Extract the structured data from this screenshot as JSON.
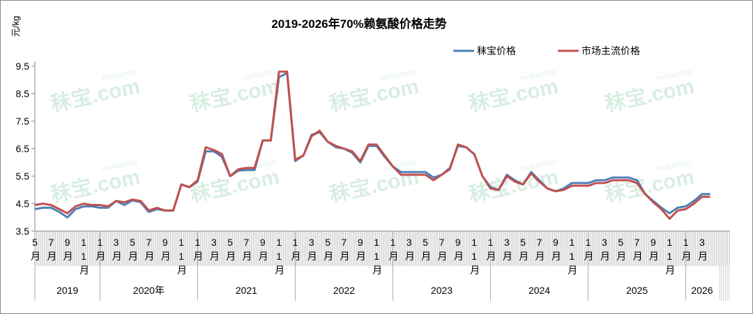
{
  "chart_data": {
    "type": "line",
    "title": "2019-2026年70%赖氨酸价格走势",
    "ylabel": "元/kg",
    "xlabel": "",
    "ylim": [
      3.5,
      9.8
    ],
    "yticks": [
      "3.5",
      "4.5",
      "5.5",
      "6.5",
      "7.5",
      "8.5",
      "9.5"
    ],
    "grid": false,
    "legend_placement": "top-right",
    "watermark": "秣宝.com mobaobuy",
    "x_start": "2019-05",
    "x_end": "2026-04",
    "x_tick_labels": [
      "5月",
      "7月",
      "9月",
      "11月",
      "1月",
      "3月",
      "5月",
      "7月",
      "9月",
      "11月",
      "1月",
      "3月",
      "5月",
      "7月",
      "9月",
      "11月",
      "1月",
      "3月",
      "5月",
      "7月",
      "9月",
      "11月",
      "1月",
      "3月",
      "5月",
      "7月",
      "9月",
      "11月",
      "1月",
      "3月",
      "5月",
      "7月",
      "9月",
      "11月",
      "1月",
      "3月",
      "5月",
      "7月",
      "9月",
      "11月",
      "1月",
      "3月"
    ],
    "year_labels": [
      "2019",
      "2020年",
      "2021",
      "2022",
      "2023",
      "2024",
      "2025",
      "2026"
    ],
    "x": [
      "2019-05",
      "2019-06",
      "2019-07",
      "2019-08",
      "2019-09",
      "2019-10",
      "2019-11",
      "2019-12",
      "2020-01",
      "2020-02",
      "2020-03",
      "2020-04",
      "2020-05",
      "2020-06",
      "2020-07",
      "2020-08",
      "2020-09",
      "2020-10",
      "2020-11",
      "2020-12",
      "2021-01",
      "2021-02",
      "2021-03",
      "2021-04",
      "2021-05",
      "2021-06",
      "2021-07",
      "2021-08",
      "2021-09",
      "2021-10",
      "2021-11",
      "2021-12",
      "2022-01",
      "2022-02",
      "2022-03",
      "2022-04",
      "2022-05",
      "2022-06",
      "2022-07",
      "2022-08",
      "2022-09",
      "2022-10",
      "2022-11",
      "2022-12",
      "2023-01",
      "2023-02",
      "2023-03",
      "2023-04",
      "2023-05",
      "2023-06",
      "2023-07",
      "2023-08",
      "2023-09",
      "2023-10",
      "2023-11",
      "2023-12",
      "2024-01",
      "2024-02",
      "2024-03",
      "2024-04",
      "2024-05",
      "2024-06",
      "2024-07",
      "2024-08",
      "2024-09",
      "2024-10",
      "2024-11",
      "2024-12",
      "2025-01",
      "2025-02",
      "2025-03",
      "2025-04",
      "2025-05",
      "2025-06",
      "2025-07",
      "2025-08",
      "2025-09",
      "2025-10",
      "2025-11",
      "2025-12",
      "2026-01",
      "2026-02",
      "2026-03",
      "2026-04"
    ],
    "series": [
      {
        "name": "秣宝价格",
        "color": "#4f7fb8",
        "values": [
          4.3,
          4.35,
          4.35,
          4.2,
          4.0,
          4.3,
          4.4,
          4.4,
          4.35,
          4.35,
          4.6,
          4.45,
          4.62,
          4.55,
          4.2,
          4.3,
          4.25,
          4.25,
          5.2,
          5.1,
          5.3,
          6.4,
          6.4,
          6.2,
          5.5,
          5.7,
          5.72,
          5.72,
          6.8,
          6.8,
          9.1,
          9.25,
          6.05,
          6.25,
          7.0,
          7.1,
          6.75,
          6.55,
          6.5,
          6.35,
          6.0,
          6.6,
          6.6,
          6.2,
          5.85,
          5.65,
          5.65,
          5.65,
          5.65,
          5.45,
          5.55,
          5.8,
          6.6,
          6.55,
          6.3,
          5.5,
          5.1,
          5.0,
          5.55,
          5.35,
          5.2,
          5.65,
          5.35,
          5.05,
          4.95,
          5.05,
          5.25,
          5.25,
          5.25,
          5.35,
          5.35,
          5.45,
          5.45,
          5.45,
          5.35,
          4.85,
          4.6,
          4.35,
          4.15,
          4.35,
          4.4,
          4.6,
          4.85,
          4.85
        ]
      },
      {
        "name": "市场主流价格",
        "color": "#c0504d",
        "values": [
          4.45,
          4.5,
          4.45,
          4.3,
          4.15,
          4.4,
          4.5,
          4.45,
          4.45,
          4.4,
          4.6,
          4.55,
          4.65,
          4.6,
          4.25,
          4.35,
          4.25,
          4.25,
          5.2,
          5.1,
          5.35,
          6.55,
          6.45,
          6.3,
          5.5,
          5.75,
          5.8,
          5.8,
          6.8,
          6.8,
          9.3,
          9.3,
          6.1,
          6.25,
          6.95,
          7.15,
          6.75,
          6.6,
          6.5,
          6.4,
          6.05,
          6.65,
          6.65,
          6.25,
          5.85,
          5.55,
          5.55,
          5.55,
          5.55,
          5.35,
          5.55,
          5.75,
          6.65,
          6.55,
          6.3,
          5.5,
          5.05,
          5.0,
          5.5,
          5.3,
          5.2,
          5.6,
          5.3,
          5.05,
          4.95,
          5.0,
          5.15,
          5.15,
          5.15,
          5.25,
          5.25,
          5.35,
          5.35,
          5.35,
          5.25,
          4.85,
          4.55,
          4.3,
          3.95,
          4.25,
          4.3,
          4.5,
          4.75,
          4.75
        ]
      }
    ]
  }
}
